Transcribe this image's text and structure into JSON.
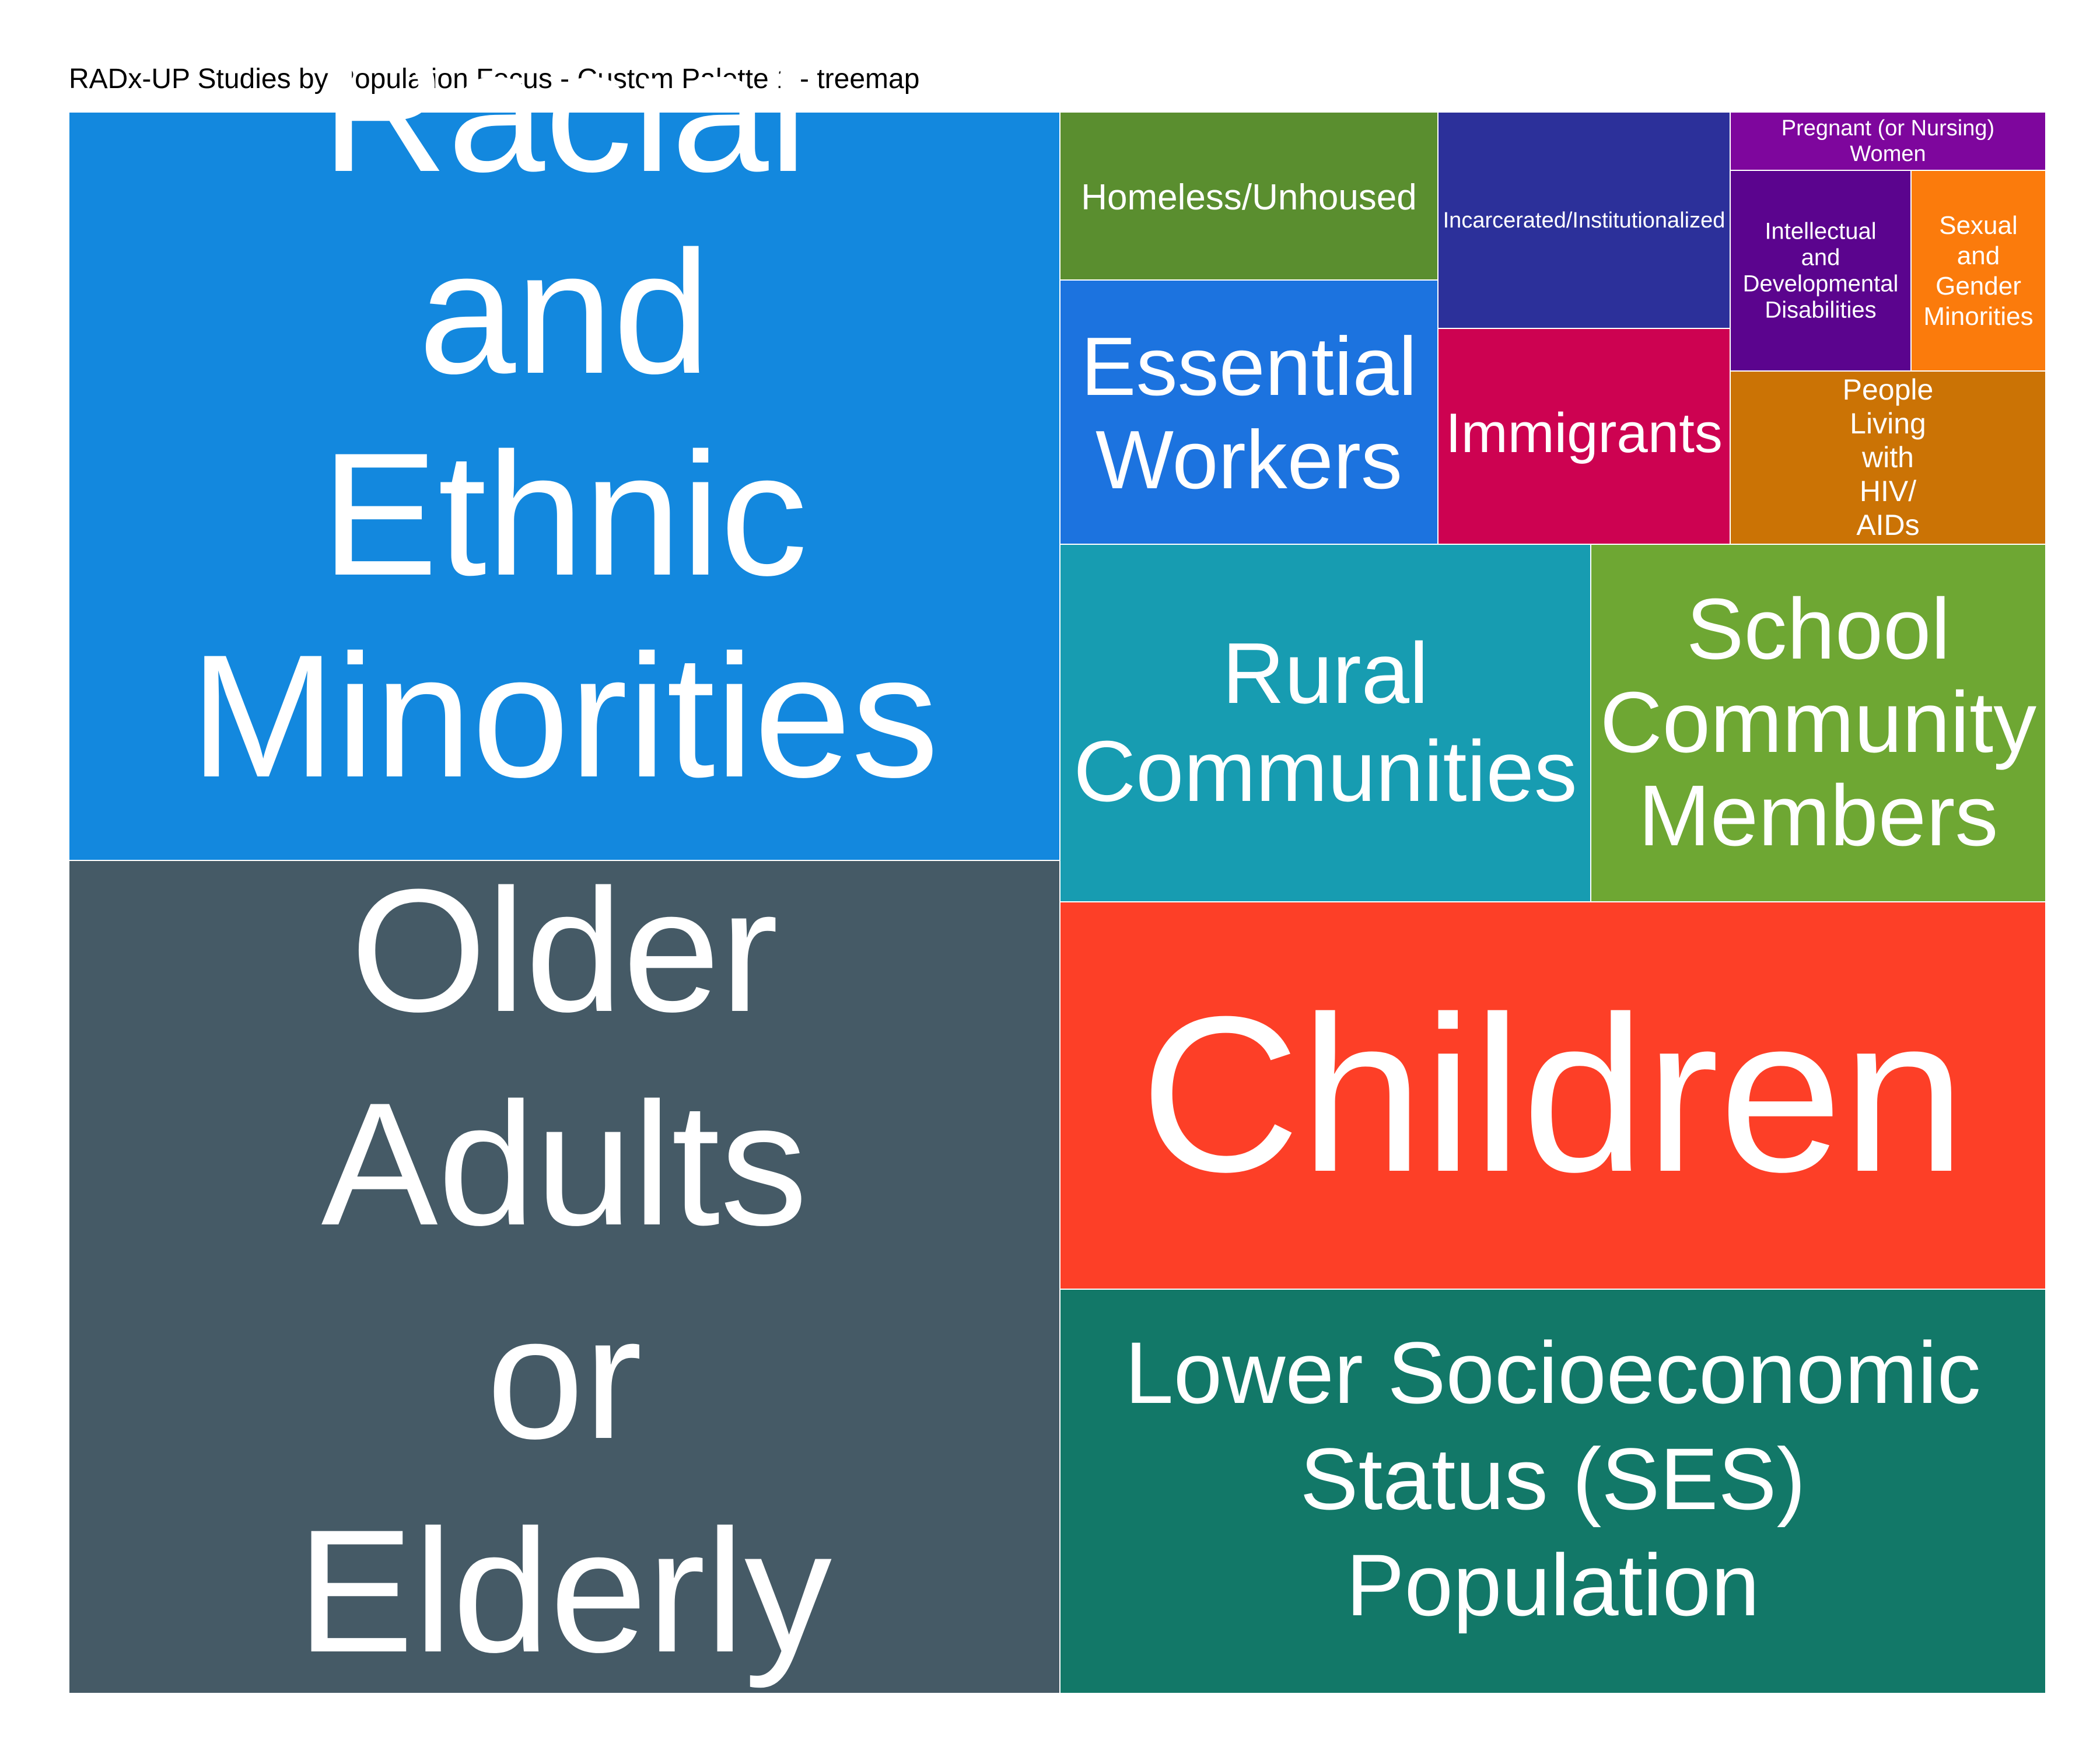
{
  "chart_data": {
    "type": "treemap",
    "title": "RADx-UP Studies by Population Focus - Custom Palette 1 - treemap",
    "cells": [
      {
        "name": "Racial and Ethnic Minorities",
        "lines": [
          "Racial",
          "and",
          "Ethnic",
          "Minorities"
        ],
        "color": "#1388DE"
      },
      {
        "name": "Older Adults or Elderly",
        "lines": [
          "Older",
          "Adults",
          "or",
          "Elderly"
        ],
        "color": "#455A66"
      },
      {
        "name": "Children",
        "lines": [
          "Children"
        ],
        "color": "#FD3F27"
      },
      {
        "name": "Lower Socioeconomic Status (SES) Population",
        "lines": [
          "Lower Socioeconomic",
          "Status (SES)",
          "Population"
        ],
        "color": "#127868"
      },
      {
        "name": "Rural Communities",
        "lines": [
          "Rural",
          "Communities"
        ],
        "color": "#179CB1"
      },
      {
        "name": "School Community Members",
        "lines": [
          "School",
          "Community",
          "Members"
        ],
        "color": "#6EA733"
      },
      {
        "name": "Essential Workers",
        "lines": [
          "Essential",
          "Workers"
        ],
        "color": "#1C73DF"
      },
      {
        "name": "Homeless/Unhoused",
        "lines": [
          "Homeless/Unhoused"
        ],
        "color": "#5A8E2F"
      },
      {
        "name": "Immigrants",
        "lines": [
          "Immigrants"
        ],
        "color": "#CD0251"
      },
      {
        "name": "Incarcerated/Institutionalized",
        "lines": [
          "Incarcerated/Institutionalized"
        ],
        "color": "#2C309A"
      },
      {
        "name": "People Living with HIV/AIDs",
        "lines": [
          "People",
          "Living",
          "with",
          "HIV/",
          "AIDs"
        ],
        "color": "#CB7305"
      },
      {
        "name": "Intellectual and Developmental Disabilities",
        "lines": [
          "Intellectual",
          "and",
          "Developmental",
          "Disabilities"
        ],
        "color": "#5B048E"
      },
      {
        "name": "Sexual and Gender Minorities",
        "lines": [
          "Sexual",
          "and",
          "Gender",
          "Minorities"
        ],
        "color": "#FB7B0C"
      },
      {
        "name": "Pregnant (or Nursing) Women",
        "lines": [
          "Pregnant (or Nursing)",
          "Women"
        ],
        "color": "#7E069D"
      }
    ]
  }
}
